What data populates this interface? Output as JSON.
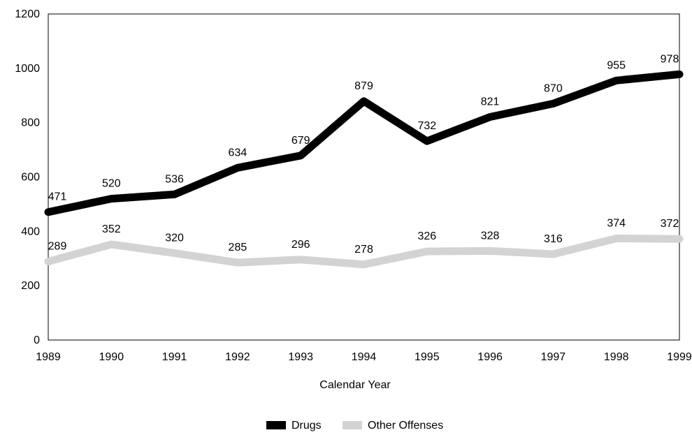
{
  "chart_data": {
    "type": "line",
    "title": "",
    "xlabel": "Calendar Year",
    "ylabel": "",
    "x": [
      "1989",
      "1990",
      "1991",
      "1992",
      "1993",
      "1994",
      "1995",
      "1996",
      "1997",
      "1998",
      "1999"
    ],
    "ylim": [
      0,
      1200
    ],
    "yticks": [
      0,
      200,
      400,
      600,
      800,
      1000,
      1200
    ],
    "grid": false,
    "legend_position": "bottom-center",
    "series": [
      {
        "name": "Drugs",
        "color": "#000000",
        "values": [
          471,
          520,
          536,
          634,
          679,
          879,
          732,
          821,
          870,
          955,
          978
        ]
      },
      {
        "name": "Other Offenses",
        "color": "#d3d3d3",
        "values": [
          289,
          352,
          320,
          285,
          296,
          278,
          326,
          328,
          316,
          374,
          372
        ]
      }
    ]
  }
}
